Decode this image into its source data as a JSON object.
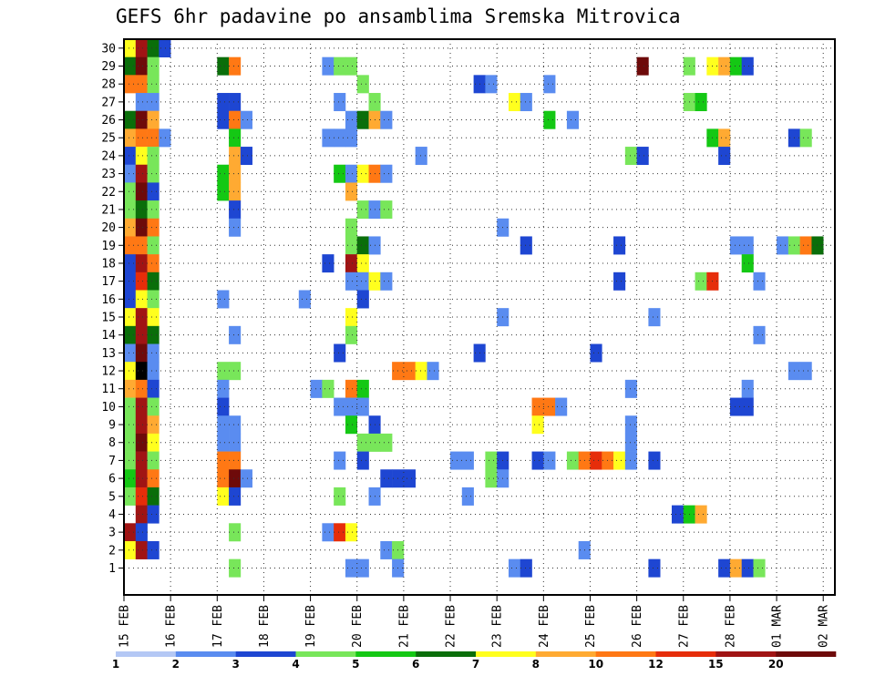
{
  "chart_data": {
    "type": "heatmap",
    "title": "GEFS 6hr padavine po ansamblima Sremska Mitrovica",
    "xlabel": "",
    "ylabel": "",
    "x_tick_labels": [
      "15 FEB",
      "16 FEB",
      "17 FEB",
      "18 FEB",
      "19 FEB",
      "20 FEB",
      "21 FEB",
      "22 FEB",
      "23 FEB",
      "24 FEB",
      "25 FEB",
      "26 FEB",
      "27 FEB",
      "28 FEB",
      "01 MAR",
      "02 MAR"
    ],
    "y_tick_labels": [
      "1",
      "2",
      "3",
      "4",
      "5",
      "6",
      "7",
      "8",
      "9",
      "10",
      "11",
      "12",
      "13",
      "14",
      "15",
      "16",
      "17",
      "18",
      "19",
      "20",
      "21",
      "22",
      "23",
      "24",
      "25",
      "26",
      "27",
      "28",
      "29",
      "30"
    ],
    "time_steps": 61,
    "members": 31,
    "grid": "dotted",
    "legend_labels": [
      "1",
      "2",
      "3",
      "4",
      "5",
      "6",
      "7",
      "8",
      "10",
      "12",
      "15",
      "20"
    ],
    "legend_colors": [
      "#b4c8f5",
      "#5a8cf0",
      "#1e46d2",
      "#78e65a",
      "#14c814",
      "#0a6e0a",
      "#ffff1e",
      "#ffaa32",
      "#ff7814",
      "#e62d0a",
      "#a01414",
      "#6e0a0a"
    ],
    "cells": [
      [
        0,
        30,
        6
      ],
      [
        1,
        30,
        10
      ],
      [
        2,
        30,
        5
      ],
      [
        3,
        30,
        2
      ],
      [
        0,
        29,
        5
      ],
      [
        1,
        29,
        11
      ],
      [
        2,
        29,
        3
      ],
      [
        8,
        29,
        5
      ],
      [
        9,
        29,
        8
      ],
      [
        17,
        29,
        1
      ],
      [
        18,
        29,
        3
      ],
      [
        19,
        29,
        3
      ],
      [
        44,
        29,
        11
      ],
      [
        48,
        29,
        3
      ],
      [
        50,
        29,
        6
      ],
      [
        51,
        29,
        7
      ],
      [
        52,
        29,
        4
      ],
      [
        53,
        29,
        2
      ],
      [
        0,
        28,
        8
      ],
      [
        1,
        28,
        8
      ],
      [
        2,
        28,
        3
      ],
      [
        20,
        28,
        3
      ],
      [
        30,
        28,
        2
      ],
      [
        31,
        28,
        1
      ],
      [
        36,
        28,
        1
      ],
      [
        1,
        27,
        1
      ],
      [
        2,
        27,
        1
      ],
      [
        8,
        27,
        2
      ],
      [
        9,
        27,
        2
      ],
      [
        18,
        27,
        1
      ],
      [
        21,
        27,
        3
      ],
      [
        33,
        27,
        6
      ],
      [
        34,
        27,
        1
      ],
      [
        48,
        27,
        3
      ],
      [
        49,
        27,
        4
      ],
      [
        0,
        26,
        5
      ],
      [
        1,
        26,
        11
      ],
      [
        2,
        26,
        7
      ],
      [
        8,
        26,
        2
      ],
      [
        9,
        26,
        8
      ],
      [
        10,
        26,
        1
      ],
      [
        19,
        26,
        1
      ],
      [
        20,
        26,
        5
      ],
      [
        21,
        26,
        7
      ],
      [
        22,
        26,
        1
      ],
      [
        36,
        26,
        4
      ],
      [
        38,
        26,
        1
      ],
      [
        0,
        25,
        7
      ],
      [
        1,
        25,
        8
      ],
      [
        2,
        25,
        8
      ],
      [
        3,
        25,
        1
      ],
      [
        9,
        25,
        4
      ],
      [
        17,
        25,
        1
      ],
      [
        18,
        25,
        1
      ],
      [
        19,
        25,
        1
      ],
      [
        50,
        25,
        4
      ],
      [
        51,
        25,
        7
      ],
      [
        57,
        25,
        2
      ],
      [
        58,
        25,
        3
      ],
      [
        0,
        24,
        2
      ],
      [
        1,
        24,
        6
      ],
      [
        2,
        24,
        3
      ],
      [
        9,
        24,
        7
      ],
      [
        10,
        24,
        2
      ],
      [
        25,
        24,
        1
      ],
      [
        43,
        24,
        3
      ],
      [
        44,
        24,
        2
      ],
      [
        51,
        24,
        2
      ],
      [
        0,
        23,
        1
      ],
      [
        1,
        23,
        10
      ],
      [
        2,
        23,
        3
      ],
      [
        8,
        23,
        4
      ],
      [
        9,
        23,
        7
      ],
      [
        18,
        23,
        4
      ],
      [
        19,
        23,
        1
      ],
      [
        20,
        23,
        6
      ],
      [
        21,
        23,
        8
      ],
      [
        22,
        23,
        1
      ],
      [
        0,
        22,
        3
      ],
      [
        1,
        22,
        11
      ],
      [
        2,
        22,
        2
      ],
      [
        8,
        22,
        4
      ],
      [
        9,
        22,
        7
      ],
      [
        19,
        22,
        7
      ],
      [
        0,
        21,
        3
      ],
      [
        1,
        21,
        5
      ],
      [
        2,
        21,
        3
      ],
      [
        9,
        21,
        2
      ],
      [
        20,
        21,
        3
      ],
      [
        21,
        21,
        1
      ],
      [
        22,
        21,
        3
      ],
      [
        0,
        20,
        7
      ],
      [
        1,
        20,
        11
      ],
      [
        2,
        20,
        8
      ],
      [
        9,
        20,
        1
      ],
      [
        19,
        20,
        3
      ],
      [
        32,
        20,
        1
      ],
      [
        0,
        19,
        8
      ],
      [
        1,
        19,
        8
      ],
      [
        2,
        19,
        3
      ],
      [
        19,
        19,
        3
      ],
      [
        20,
        19,
        5
      ],
      [
        21,
        19,
        1
      ],
      [
        34,
        19,
        2
      ],
      [
        42,
        19,
        2
      ],
      [
        52,
        19,
        1
      ],
      [
        53,
        19,
        1
      ],
      [
        56,
        19,
        1
      ],
      [
        57,
        19,
        3
      ],
      [
        58,
        19,
        8
      ],
      [
        59,
        19,
        5
      ],
      [
        0,
        18,
        2
      ],
      [
        1,
        18,
        10
      ],
      [
        2,
        18,
        8
      ],
      [
        17,
        18,
        2
      ],
      [
        19,
        18,
        10
      ],
      [
        20,
        18,
        6
      ],
      [
        53,
        18,
        4
      ],
      [
        0,
        17,
        2
      ],
      [
        1,
        17,
        9
      ],
      [
        2,
        17,
        5
      ],
      [
        19,
        17,
        1
      ],
      [
        20,
        17,
        1
      ],
      [
        21,
        17,
        6
      ],
      [
        22,
        17,
        1
      ],
      [
        42,
        17,
        2
      ],
      [
        49,
        17,
        3
      ],
      [
        50,
        17,
        9
      ],
      [
        54,
        17,
        1
      ],
      [
        0,
        16,
        2
      ],
      [
        1,
        16,
        6
      ],
      [
        2,
        16,
        3
      ],
      [
        8,
        16,
        1
      ],
      [
        15,
        16,
        1
      ],
      [
        20,
        16,
        2
      ],
      [
        0,
        15,
        6
      ],
      [
        1,
        15,
        10
      ],
      [
        2,
        15,
        6
      ],
      [
        19,
        15,
        6
      ],
      [
        32,
        15,
        1
      ],
      [
        45,
        15,
        1
      ],
      [
        0,
        14,
        5
      ],
      [
        1,
        14,
        10
      ],
      [
        2,
        14,
        5
      ],
      [
        9,
        14,
        1
      ],
      [
        19,
        14,
        3
      ],
      [
        54,
        14,
        1
      ],
      [
        0,
        13,
        1
      ],
      [
        1,
        13,
        11
      ],
      [
        2,
        13,
        1
      ],
      [
        18,
        13,
        2
      ],
      [
        30,
        13,
        2
      ],
      [
        40,
        13,
        2
      ],
      [
        0,
        12,
        6
      ],
      [
        1,
        12,
        12
      ],
      [
        2,
        12,
        1
      ],
      [
        8,
        12,
        3
      ],
      [
        9,
        12,
        3
      ],
      [
        23,
        12,
        8
      ],
      [
        24,
        12,
        8
      ],
      [
        25,
        12,
        6
      ],
      [
        26,
        12,
        1
      ],
      [
        57,
        12,
        1
      ],
      [
        58,
        12,
        1
      ],
      [
        0,
        11,
        7
      ],
      [
        1,
        11,
        8
      ],
      [
        2,
        11,
        2
      ],
      [
        8,
        11,
        1
      ],
      [
        16,
        11,
        1
      ],
      [
        17,
        11,
        3
      ],
      [
        19,
        11,
        8
      ],
      [
        20,
        11,
        4
      ],
      [
        43,
        11,
        1
      ],
      [
        53,
        11,
        1
      ],
      [
        0,
        10,
        3
      ],
      [
        1,
        10,
        10
      ],
      [
        2,
        10,
        3
      ],
      [
        8,
        10,
        2
      ],
      [
        18,
        10,
        1
      ],
      [
        19,
        10,
        1
      ],
      [
        20,
        10,
        1
      ],
      [
        35,
        10,
        8
      ],
      [
        36,
        10,
        8
      ],
      [
        37,
        10,
        1
      ],
      [
        52,
        10,
        2
      ],
      [
        53,
        10,
        2
      ],
      [
        0,
        9,
        3
      ],
      [
        1,
        9,
        10
      ],
      [
        2,
        9,
        7
      ],
      [
        8,
        9,
        1
      ],
      [
        9,
        9,
        1
      ],
      [
        19,
        9,
        4
      ],
      [
        21,
        9,
        2
      ],
      [
        35,
        9,
        6
      ],
      [
        43,
        9,
        1
      ],
      [
        0,
        8,
        3
      ],
      [
        1,
        8,
        11
      ],
      [
        2,
        8,
        6
      ],
      [
        8,
        8,
        1
      ],
      [
        9,
        8,
        1
      ],
      [
        20,
        8,
        3
      ],
      [
        21,
        8,
        3
      ],
      [
        22,
        8,
        3
      ],
      [
        43,
        8,
        1
      ],
      [
        0,
        7,
        3
      ],
      [
        1,
        7,
        10
      ],
      [
        2,
        7,
        3
      ],
      [
        8,
        7,
        8
      ],
      [
        9,
        7,
        8
      ],
      [
        18,
        7,
        1
      ],
      [
        20,
        7,
        2
      ],
      [
        28,
        7,
        1
      ],
      [
        29,
        7,
        1
      ],
      [
        31,
        7,
        3
      ],
      [
        32,
        7,
        2
      ],
      [
        35,
        7,
        2
      ],
      [
        36,
        7,
        1
      ],
      [
        38,
        7,
        3
      ],
      [
        39,
        7,
        8
      ],
      [
        40,
        7,
        9
      ],
      [
        41,
        7,
        8
      ],
      [
        42,
        7,
        6
      ],
      [
        43,
        7,
        1
      ],
      [
        45,
        7,
        2
      ],
      [
        0,
        6,
        4
      ],
      [
        1,
        6,
        10
      ],
      [
        2,
        6,
        8
      ],
      [
        8,
        6,
        8
      ],
      [
        9,
        6,
        11
      ],
      [
        10,
        6,
        1
      ],
      [
        22,
        6,
        2
      ],
      [
        23,
        6,
        2
      ],
      [
        24,
        6,
        2
      ],
      [
        31,
        6,
        3
      ],
      [
        32,
        6,
        1
      ],
      [
        0,
        5,
        3
      ],
      [
        1,
        5,
        9
      ],
      [
        2,
        5,
        5
      ],
      [
        8,
        5,
        6
      ],
      [
        9,
        5,
        2
      ],
      [
        18,
        5,
        3
      ],
      [
        21,
        5,
        1
      ],
      [
        29,
        5,
        1
      ],
      [
        1,
        4,
        10
      ],
      [
        2,
        4,
        2
      ],
      [
        47,
        4,
        2
      ],
      [
        48,
        4,
        4
      ],
      [
        49,
        4,
        7
      ],
      [
        0,
        3,
        10
      ],
      [
        1,
        3,
        2
      ],
      [
        9,
        3,
        3
      ],
      [
        17,
        3,
        1
      ],
      [
        18,
        3,
        9
      ],
      [
        19,
        3,
        6
      ],
      [
        0,
        2,
        6
      ],
      [
        1,
        2,
        10
      ],
      [
        2,
        2,
        2
      ],
      [
        22,
        2,
        1
      ],
      [
        23,
        2,
        3
      ],
      [
        39,
        2,
        1
      ],
      [
        9,
        1,
        3
      ],
      [
        19,
        1,
        1
      ],
      [
        20,
        1,
        1
      ],
      [
        23,
        1,
        1
      ],
      [
        33,
        1,
        1
      ],
      [
        34,
        1,
        2
      ],
      [
        45,
        1,
        2
      ],
      [
        51,
        1,
        2
      ],
      [
        52,
        1,
        7
      ],
      [
        53,
        1,
        2
      ],
      [
        54,
        1,
        3
      ]
    ]
  }
}
